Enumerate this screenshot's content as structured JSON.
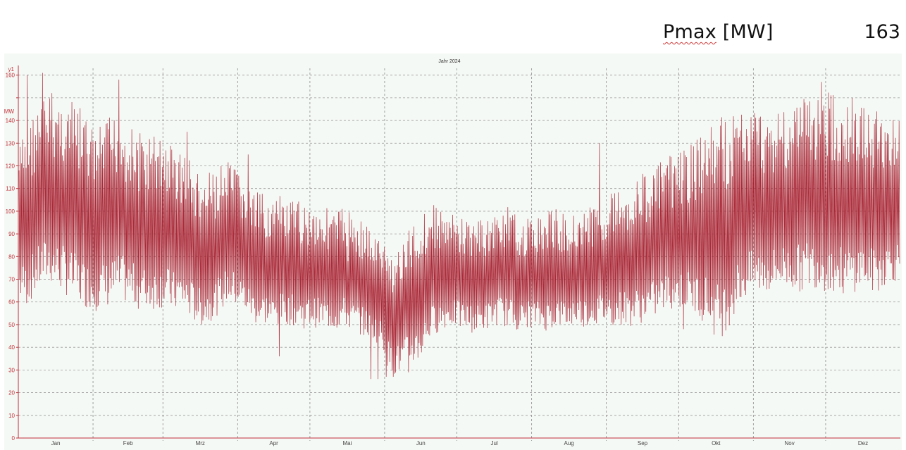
{
  "header": {
    "label_main": "Pmax",
    "label_unit": " [MW]",
    "value": "163"
  },
  "chart_data": {
    "type": "line",
    "title": "Jahr 2024",
    "axis_label": "y1",
    "ylabel": "MW",
    "ylim": [
      0,
      163
    ],
    "yticks": [
      0,
      10,
      20,
      30,
      40,
      50,
      60,
      70,
      80,
      90,
      100,
      110,
      120,
      130,
      140,
      150,
      160
    ],
    "categories": [
      "Jan",
      "Feb",
      "Mrz",
      "Apr",
      "Mai",
      "Jun",
      "Jul",
      "Aug",
      "Sep",
      "Okt",
      "Nov",
      "Dez"
    ],
    "grid": true,
    "color": "#a61e2d",
    "series": [
      {
        "name": "",
        "min": [
          60,
          58,
          62,
          66,
          68,
          65,
          63,
          60,
          58,
          57,
          56,
          57,
          58,
          60,
          59,
          57,
          56,
          56,
          57,
          57,
          55,
          56,
          53,
          50,
          49,
          52,
          55,
          60,
          58,
          56,
          52,
          49,
          50,
          48,
          50,
          50,
          49,
          48,
          49,
          48,
          48,
          47,
          49,
          47,
          46,
          44,
          43,
          40,
          28,
          27,
          30,
          32,
          34,
          42,
          46,
          48,
          49,
          48,
          47,
          46,
          47,
          48,
          50,
          49,
          48,
          47,
          49,
          48,
          47,
          48,
          49,
          48,
          50,
          49,
          49,
          50,
          50,
          49,
          50,
          49,
          50,
          51,
          52,
          55,
          56,
          57,
          56,
          55,
          53,
          50,
          45,
          44,
          50,
          56,
          60,
          62,
          63,
          63,
          64,
          66,
          65,
          64,
          66,
          66,
          65,
          64,
          63,
          62,
          64,
          66,
          64,
          63,
          67,
          68,
          70
        ],
        "max": [
          130,
          138,
          145,
          150,
          154,
          152,
          150,
          148,
          146,
          140,
          135,
          140,
          143,
          145,
          140,
          136,
          135,
          134,
          135,
          133,
          130,
          128,
          125,
          118,
          115,
          118,
          120,
          122,
          120,
          115,
          110,
          108,
          108,
          106,
          107,
          104,
          105,
          104,
          104,
          103,
          102,
          100,
          103,
          100,
          98,
          95,
          90,
          88,
          82,
          85,
          88,
          96,
          100,
          102,
          104,
          100,
          99,
          98,
          97,
          98,
          96,
          98,
          101,
          103,
          99,
          98,
          97,
          98,
          100,
          102,
          100,
          98,
          101,
          102,
          102,
          104,
          108,
          110,
          112,
          114,
          115,
          118,
          120,
          122,
          124,
          126,
          128,
          130,
          132,
          138,
          140,
          142,
          143,
          145,
          147,
          146,
          145,
          145,
          146,
          147,
          148,
          150,
          152,
          153,
          154,
          153,
          152,
          150,
          148,
          147,
          146,
          145,
          144,
          143,
          140
        ],
        "spikes": [
          [
            1,
            160
          ],
          [
            3,
            161
          ],
          [
            13,
            158
          ],
          [
            22,
            135
          ],
          [
            30,
            125
          ],
          [
            34,
            36
          ],
          [
            43,
            78
          ],
          [
            46,
            26
          ],
          [
            48,
            27
          ],
          [
            50,
            29
          ],
          [
            75,
            130
          ],
          [
            86,
            48
          ],
          [
            99,
            130
          ],
          [
            104,
            157
          ],
          [
            108,
            150
          ]
        ]
      }
    ]
  }
}
